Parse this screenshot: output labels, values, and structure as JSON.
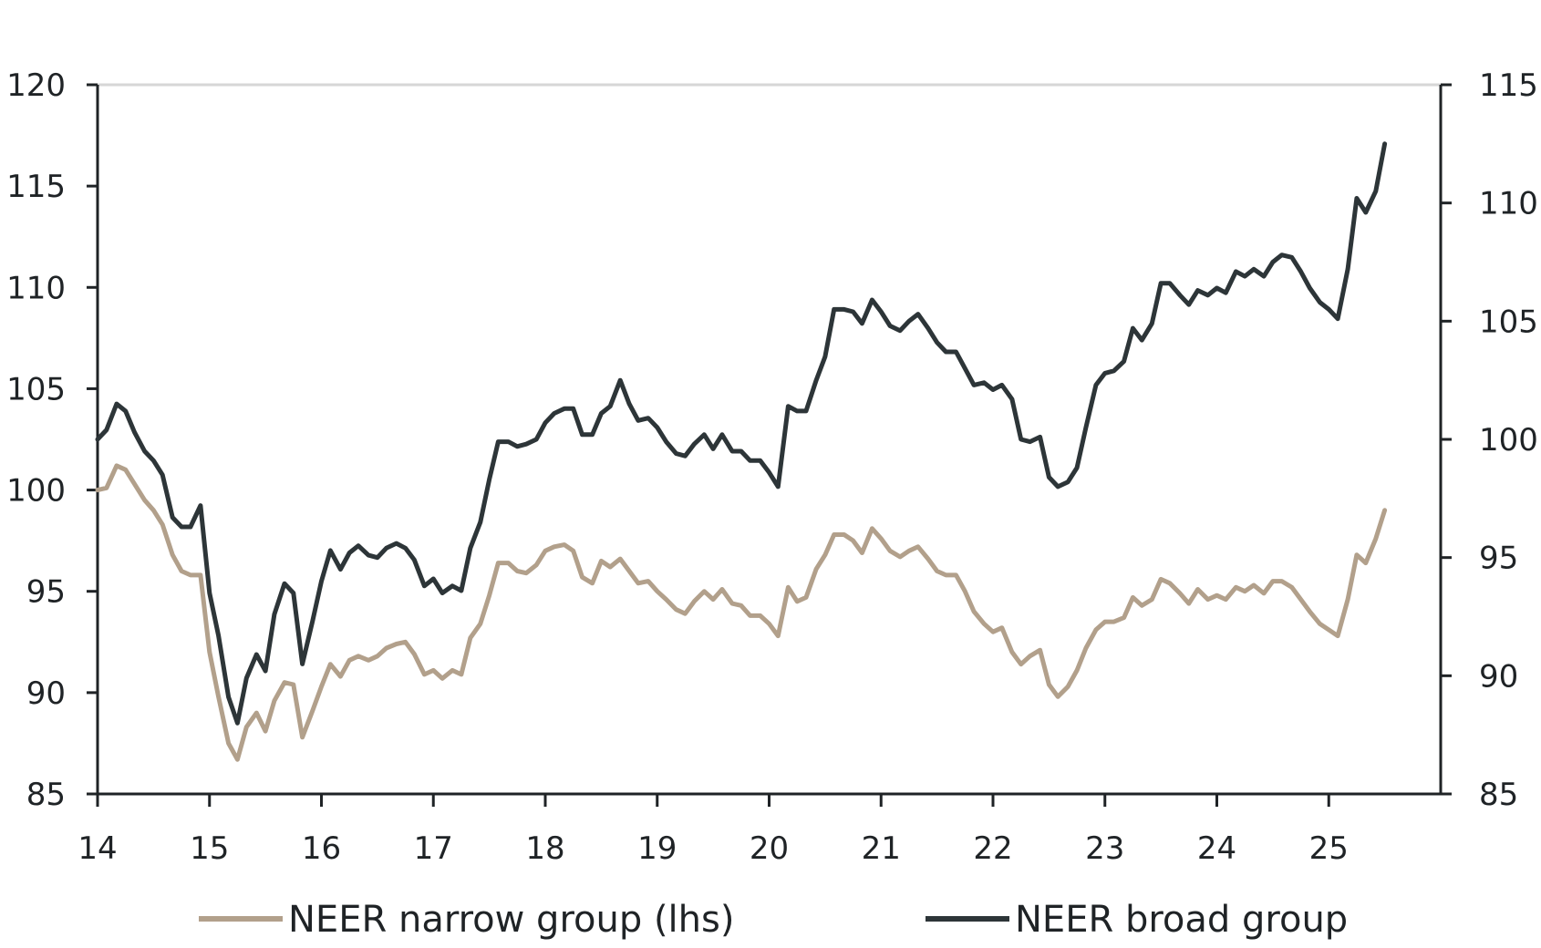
{
  "chart_data": {
    "type": "line",
    "title": "",
    "xlabel": "",
    "ylabel": "",
    "x_ticks": [
      "14",
      "15",
      "16",
      "17",
      "18",
      "19",
      "20",
      "21",
      "22",
      "23",
      "24",
      "25"
    ],
    "x_range": [
      14,
      26.0
    ],
    "y_left": {
      "ticks": [
        "85",
        "90",
        "95",
        "100",
        "105",
        "110",
        "115",
        "120"
      ],
      "range": [
        85,
        120
      ]
    },
    "y_right": {
      "ticks": [
        "85",
        "90",
        "95",
        "100",
        "105",
        "110",
        "115"
      ],
      "range": [
        85,
        115
      ]
    },
    "grid": false,
    "legend_position": "bottom",
    "series": [
      {
        "name": "NEER narrow group (lhs)",
        "axis": "left",
        "color": "#b2a08b",
        "x": [
          14.0,
          14.08,
          14.17,
          14.25,
          14.33,
          14.42,
          14.5,
          14.58,
          14.67,
          14.75,
          14.83,
          14.92,
          15.0,
          15.08,
          15.17,
          15.25,
          15.33,
          15.42,
          15.5,
          15.58,
          15.67,
          15.75,
          15.83,
          15.92,
          16.0,
          16.08,
          16.17,
          16.25,
          16.33,
          16.42,
          16.5,
          16.58,
          16.67,
          16.75,
          16.83,
          16.92,
          17.0,
          17.08,
          17.17,
          17.25,
          17.33,
          17.42,
          17.5,
          17.58,
          17.67,
          17.75,
          17.83,
          17.92,
          18.0,
          18.08,
          18.17,
          18.25,
          18.33,
          18.42,
          18.5,
          18.58,
          18.67,
          18.75,
          18.83,
          18.92,
          19.0,
          19.08,
          19.17,
          19.25,
          19.33,
          19.42,
          19.5,
          19.58,
          19.67,
          19.75,
          19.83,
          19.92,
          20.0,
          20.08,
          20.17,
          20.25,
          20.33,
          20.42,
          20.5,
          20.58,
          20.67,
          20.75,
          20.83,
          20.92,
          21.0,
          21.08,
          21.17,
          21.25,
          21.33,
          21.42,
          21.5,
          21.58,
          21.67,
          21.75,
          21.83,
          21.92,
          22.0,
          22.08,
          22.17,
          22.25,
          22.33,
          22.42,
          22.5,
          22.58,
          22.67,
          22.75,
          22.83,
          22.92,
          23.0,
          23.08,
          23.17,
          23.25,
          23.33,
          23.42,
          23.5,
          23.58,
          23.67,
          23.75,
          23.83,
          23.92,
          24.0,
          24.08,
          24.17,
          24.25,
          24.33,
          24.42,
          24.5,
          24.58,
          24.67,
          24.75,
          24.83,
          24.92,
          25.0,
          25.08,
          25.17,
          25.25,
          25.33,
          25.42,
          25.5
        ],
        "values": [
          100.0,
          100.1,
          101.2,
          101.0,
          100.3,
          99.5,
          99.0,
          98.3,
          96.8,
          96.0,
          95.8,
          95.8,
          92.0,
          89.8,
          87.5,
          86.7,
          88.3,
          89.0,
          88.1,
          89.6,
          90.5,
          90.4,
          87.8,
          89.1,
          90.3,
          91.4,
          90.8,
          91.6,
          91.8,
          91.6,
          91.8,
          92.2,
          92.4,
          92.5,
          91.9,
          90.9,
          91.1,
          90.7,
          91.1,
          90.9,
          92.7,
          93.4,
          94.8,
          96.4,
          96.4,
          96.0,
          95.9,
          96.3,
          97.0,
          97.2,
          97.3,
          97.0,
          95.7,
          95.4,
          96.5,
          96.2,
          96.6,
          96.0,
          95.4,
          95.5,
          95.0,
          94.6,
          94.1,
          93.9,
          94.5,
          95.0,
          94.6,
          95.1,
          94.4,
          94.3,
          93.8,
          93.8,
          93.4,
          92.8,
          95.2,
          94.5,
          94.7,
          96.1,
          96.8,
          97.8,
          97.8,
          97.5,
          96.9,
          98.1,
          97.6,
          97.0,
          96.7,
          97.0,
          97.2,
          96.6,
          96.0,
          95.8,
          95.8,
          95.0,
          94.0,
          93.4,
          93.0,
          93.2,
          92.0,
          91.4,
          91.8,
          92.1,
          90.4,
          89.8,
          90.3,
          91.1,
          92.2,
          93.1,
          93.5,
          93.5,
          93.7,
          94.7,
          94.3,
          94.6,
          95.6,
          95.4,
          94.9,
          94.4,
          95.1,
          94.6,
          94.8,
          94.6,
          95.2,
          95.0,
          95.3,
          94.9,
          95.5,
          95.5,
          95.2,
          94.6,
          94.0,
          93.4,
          93.1,
          92.8,
          94.6,
          96.8,
          96.4,
          97.6,
          99.0
        ]
      },
      {
        "name": "NEER broad group",
        "axis": "right",
        "color": "#2d3538",
        "x": [
          14.0,
          14.08,
          14.17,
          14.25,
          14.33,
          14.42,
          14.5,
          14.58,
          14.67,
          14.75,
          14.83,
          14.92,
          15.0,
          15.08,
          15.17,
          15.25,
          15.33,
          15.42,
          15.5,
          15.58,
          15.67,
          15.75,
          15.83,
          15.92,
          16.0,
          16.08,
          16.17,
          16.25,
          16.33,
          16.42,
          16.5,
          16.58,
          16.67,
          16.75,
          16.83,
          16.92,
          17.0,
          17.08,
          17.17,
          17.25,
          17.33,
          17.42,
          17.5,
          17.58,
          17.67,
          17.75,
          17.83,
          17.92,
          18.0,
          18.08,
          18.17,
          18.25,
          18.33,
          18.42,
          18.5,
          18.58,
          18.67,
          18.75,
          18.83,
          18.92,
          19.0,
          19.08,
          19.17,
          19.25,
          19.33,
          19.42,
          19.5,
          19.58,
          19.67,
          19.75,
          19.83,
          19.92,
          20.0,
          20.08,
          20.17,
          20.25,
          20.33,
          20.42,
          20.5,
          20.58,
          20.67,
          20.75,
          20.83,
          20.92,
          21.0,
          21.08,
          21.17,
          21.25,
          21.33,
          21.42,
          21.5,
          21.58,
          21.67,
          21.75,
          21.83,
          21.92,
          22.0,
          22.08,
          22.17,
          22.25,
          22.33,
          22.42,
          22.5,
          22.58,
          22.67,
          22.75,
          22.83,
          22.92,
          23.0,
          23.08,
          23.17,
          23.25,
          23.33,
          23.42,
          23.5,
          23.58,
          23.67,
          23.75,
          23.83,
          23.92,
          24.0,
          24.08,
          24.17,
          24.25,
          24.33,
          24.42,
          24.5,
          24.58,
          24.67,
          24.75,
          24.83,
          24.92,
          25.0,
          25.08,
          25.17,
          25.25,
          25.33,
          25.42,
          25.5
        ],
        "values": [
          100.0,
          100.4,
          101.5,
          101.2,
          100.3,
          99.5,
          99.1,
          98.5,
          96.7,
          96.3,
          96.3,
          97.2,
          93.5,
          91.7,
          89.1,
          88.0,
          89.9,
          90.9,
          90.2,
          92.6,
          93.9,
          93.5,
          90.5,
          92.3,
          94.0,
          95.3,
          94.5,
          95.2,
          95.5,
          95.1,
          95.0,
          95.4,
          95.6,
          95.4,
          94.9,
          93.8,
          94.1,
          93.5,
          93.8,
          93.6,
          95.4,
          96.5,
          98.3,
          99.9,
          99.9,
          99.7,
          99.8,
          100.0,
          100.7,
          101.1,
          101.3,
          101.3,
          100.2,
          100.2,
          101.1,
          101.4,
          102.5,
          101.5,
          100.8,
          100.9,
          100.5,
          99.9,
          99.4,
          99.3,
          99.8,
          100.2,
          99.6,
          100.2,
          99.5,
          99.5,
          99.1,
          99.1,
          98.6,
          98.0,
          101.4,
          101.2,
          101.2,
          102.5,
          103.5,
          105.5,
          105.5,
          105.4,
          104.9,
          105.9,
          105.4,
          104.8,
          104.6,
          105.0,
          105.3,
          104.7,
          104.1,
          103.7,
          103.7,
          103.0,
          102.3,
          102.4,
          102.1,
          102.3,
          101.7,
          100.0,
          99.9,
          100.1,
          98.4,
          98.0,
          98.2,
          98.8,
          100.5,
          102.3,
          102.8,
          102.9,
          103.3,
          104.7,
          104.2,
          104.9,
          106.6,
          106.6,
          106.1,
          105.7,
          106.3,
          106.1,
          106.4,
          106.2,
          107.1,
          106.9,
          107.2,
          106.9,
          107.5,
          107.8,
          107.7,
          107.1,
          106.4,
          105.8,
          105.5,
          105.1,
          107.2,
          110.2,
          109.6,
          110.5,
          112.5
        ]
      }
    ]
  }
}
